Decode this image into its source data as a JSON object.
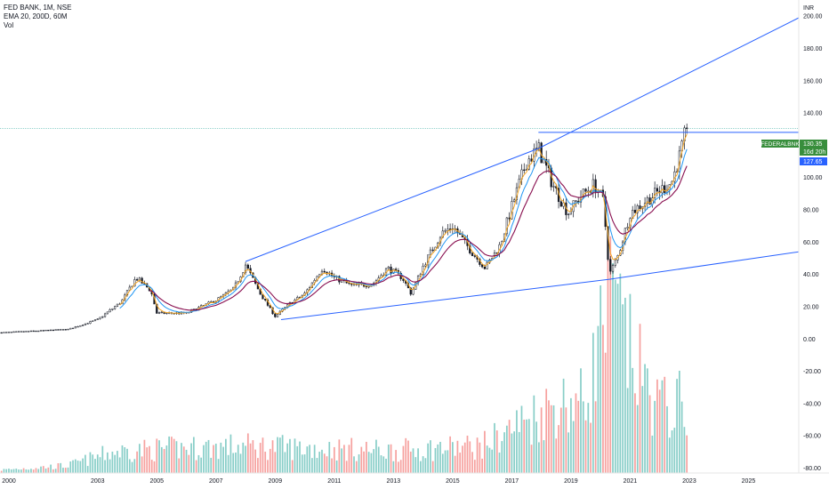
{
  "header": {
    "symbol_line": "FED BANK, 1M, NSE",
    "ema_line": "EMA 20, 200D, 60M",
    "vol_line": "Vol"
  },
  "price_axis": {
    "currency": "INR"
  },
  "badges": {
    "ticker": "FEDERALBNK",
    "last_price": "130.35",
    "countdown": "16d 20h",
    "prev_price": "127.65"
  },
  "colors": {
    "up": "#26a69a",
    "down": "#ef5350",
    "ema20": "#f5a623",
    "ema200d": "#2196f3",
    "ema60m": "#880e4f",
    "trendline": "#2962ff",
    "price_line": "#26a69a"
  },
  "chart_data": {
    "type": "candlestick",
    "x_axis": {
      "labels": [
        "2000",
        "2003",
        "2005",
        "2007",
        "2009",
        "2011",
        "2013",
        "2015",
        "2017",
        "2019",
        "2021",
        "2023",
        "2025"
      ],
      "range": [
        1999.7,
        2026.7
      ]
    },
    "y_axis": {
      "ticks": [
        "200.00",
        "180.00",
        "160.00",
        "140.00",
        "120.00",
        "100.00",
        "80.00",
        "60.00",
        "40.00",
        "20.00",
        "0.00",
        "-20.00",
        "-40.00",
        "-60.00",
        "-80.00"
      ],
      "range": [
        -83,
        210
      ]
    },
    "price_keypoints": [
      [
        1999.75,
        4
      ],
      [
        2002.0,
        6
      ],
      [
        2003.0,
        12
      ],
      [
        2003.8,
        23
      ],
      [
        2004.3,
        38
      ],
      [
        2004.8,
        30
      ],
      [
        2005.0,
        16
      ],
      [
        2006.0,
        16
      ],
      [
        2007.0,
        24
      ],
      [
        2007.6,
        31
      ],
      [
        2008.0,
        46
      ],
      [
        2008.5,
        28
      ],
      [
        2009.0,
        14
      ],
      [
        2009.5,
        22
      ],
      [
        2010.0,
        28
      ],
      [
        2010.6,
        44
      ],
      [
        2011.0,
        38
      ],
      [
        2011.6,
        33
      ],
      [
        2012.3,
        34
      ],
      [
        2012.8,
        44
      ],
      [
        2013.3,
        38
      ],
      [
        2013.6,
        28
      ],
      [
        2014.0,
        45
      ],
      [
        2014.6,
        65
      ],
      [
        2015.0,
        70
      ],
      [
        2015.6,
        55
      ],
      [
        2016.1,
        44
      ],
      [
        2016.6,
        58
      ],
      [
        2017.0,
        82
      ],
      [
        2017.5,
        110
      ],
      [
        2017.9,
        118
      ],
      [
        2018.4,
        95
      ],
      [
        2018.9,
        78
      ],
      [
        2019.3,
        88
      ],
      [
        2019.8,
        96
      ],
      [
        2020.1,
        85
      ],
      [
        2020.3,
        40
      ],
      [
        2020.6,
        52
      ],
      [
        2021.0,
        78
      ],
      [
        2021.5,
        85
      ],
      [
        2022.0,
        92
      ],
      [
        2022.4,
        97
      ],
      [
        2022.7,
        115
      ],
      [
        2022.9,
        130.35
      ]
    ],
    "volume_profile": [
      [
        1999.7,
        2
      ],
      [
        2002.0,
        5
      ],
      [
        2003.5,
        14
      ],
      [
        2005.0,
        16
      ],
      [
        2008.0,
        18
      ],
      [
        2011.0,
        16
      ],
      [
        2013.0,
        15
      ],
      [
        2016.0,
        18
      ],
      [
        2017.0,
        30
      ],
      [
        2018.5,
        46
      ],
      [
        2019.5,
        48
      ],
      [
        2020.3,
        118
      ],
      [
        2021.0,
        80
      ],
      [
        2021.8,
        48
      ],
      [
        2022.4,
        42
      ],
      [
        2022.8,
        48
      ]
    ],
    "trendlines": [
      {
        "name": "upper",
        "points": [
          [
            2008.0,
            48
          ],
          [
            2017.9,
            118
          ],
          [
            2026.7,
            199
          ]
        ]
      },
      {
        "name": "lower",
        "points": [
          [
            2009.2,
            12
          ],
          [
            2020.3,
            37
          ],
          [
            2026.7,
            54
          ]
        ]
      },
      {
        "name": "resistance",
        "points": [
          [
            2017.9,
            128
          ],
          [
            2026.7,
            128
          ]
        ]
      }
    ],
    "last_price": 130.35,
    "prev_price": 127.65
  }
}
